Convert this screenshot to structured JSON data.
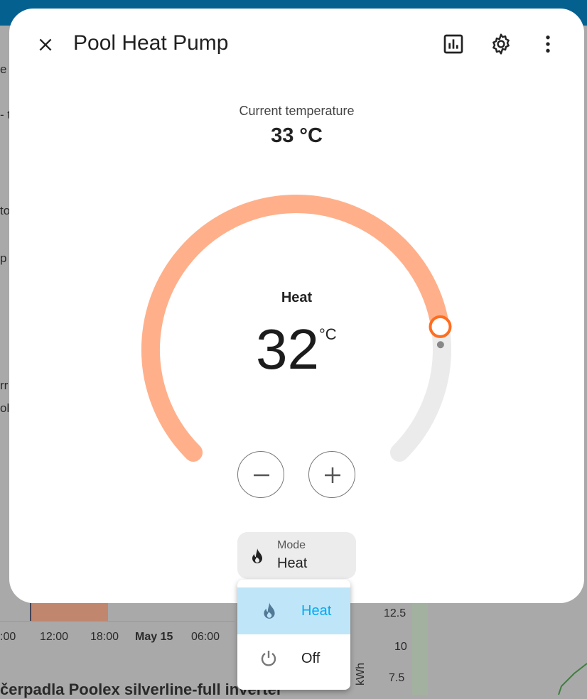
{
  "dialog": {
    "title": "Pool Heat Pump",
    "icons": [
      "close-icon",
      "history-chart-icon",
      "settings-gear-icon",
      "more-vert-icon"
    ]
  },
  "current": {
    "label": "Current temperature",
    "value": "33 °C"
  },
  "thermostat": {
    "mode_label": "Heat",
    "target": "32",
    "unit": "°C",
    "arc_color": "#ffb08a",
    "handle_color": "#ff6d1f"
  },
  "mode": {
    "label": "Mode",
    "value": "Heat"
  },
  "menu": {
    "items": [
      {
        "label": "Heat",
        "icon": "fire-icon",
        "selected": true
      },
      {
        "label": "Off",
        "icon": "power-icon",
        "selected": false
      }
    ],
    "selected_color": "#bfe6f8",
    "selected_text_color": "#03a9f4"
  },
  "background": {
    "x_ticks": [
      ":00",
      "12:00",
      "18:00",
      "May 15",
      "06:00"
    ],
    "y_ticks": [
      "12.5",
      "10",
      "7.5"
    ],
    "y_unit": "kWh",
    "card_title": "čerpadla Poolex silverline-full inverter",
    "left_fragments": [
      "e",
      "- t",
      "to",
      "p",
      "rr",
      "ol"
    ]
  }
}
